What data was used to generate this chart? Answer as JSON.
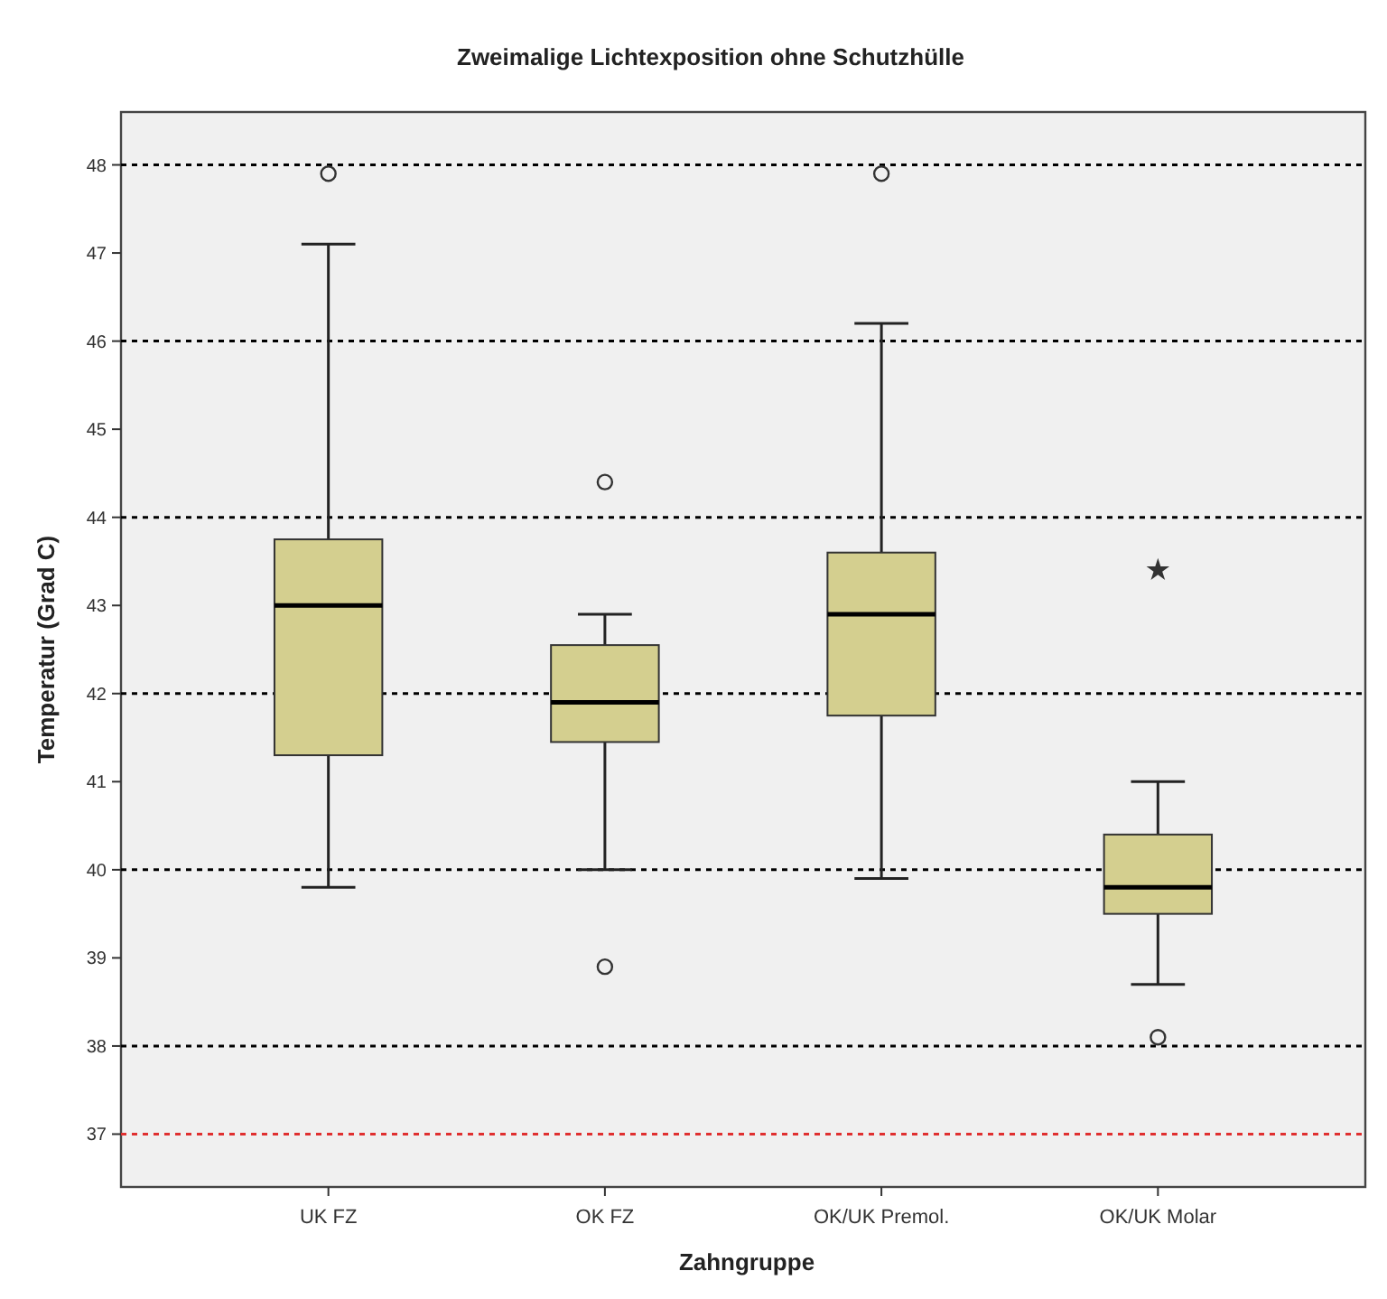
{
  "chart_data": {
    "type": "box",
    "title": "Zweimalige Lichtexposition ohne Schutzhülle",
    "xlabel": "Zahngruppe",
    "ylabel": "Temperatur (Grad C)",
    "categories": [
      "UK FZ",
      "OK FZ",
      "OK/UK Premol.",
      "OK/UK Molar"
    ],
    "color": "#d4cf8f",
    "boxes": [
      {
        "low": 39.8,
        "q1": 41.3,
        "median": 43.0,
        "q3": 43.75,
        "high": 47.1,
        "outliers": [
          47.9
        ]
      },
      {
        "low": 40.0,
        "q1": 41.45,
        "median": 41.9,
        "q3": 42.55,
        "high": 42.9,
        "outliers": [
          44.4,
          38.9
        ]
      },
      {
        "low": 39.9,
        "q1": 41.75,
        "median": 42.9,
        "q3": 43.6,
        "high": 46.2,
        "outliers": [
          47.9
        ]
      },
      {
        "low": 38.7,
        "q1": 39.5,
        "median": 39.8,
        "q3": 40.4,
        "high": 41.0,
        "outliers": [
          38.1
        ]
      }
    ],
    "series": [
      {
        "type": "scatter",
        "marker": "star",
        "color": "#333333",
        "x": [
          "OK/UK Molar"
        ],
        "values": [
          43.4
        ]
      }
    ],
    "ylim": [
      36.4,
      48.6
    ],
    "yticks": [
      37,
      38,
      39,
      40,
      41,
      42,
      43,
      44,
      45,
      46,
      47,
      48
    ],
    "ref_lines": [
      {
        "axis": "y",
        "value": 38,
        "color": "#000000",
        "line_style": "dotted"
      },
      {
        "axis": "y",
        "value": 40,
        "color": "#000000",
        "line_style": "dotted"
      },
      {
        "axis": "y",
        "value": 42,
        "color": "#000000",
        "line_style": "dotted"
      },
      {
        "axis": "y",
        "value": 44,
        "color": "#000000",
        "line_style": "dotted"
      },
      {
        "axis": "y",
        "value": 46,
        "color": "#000000",
        "line_style": "dotted"
      },
      {
        "axis": "y",
        "value": 48,
        "color": "#000000",
        "line_style": "dotted"
      },
      {
        "axis": "y",
        "value": 37,
        "color": "#e03030",
        "line_style": "dotted"
      }
    ]
  }
}
